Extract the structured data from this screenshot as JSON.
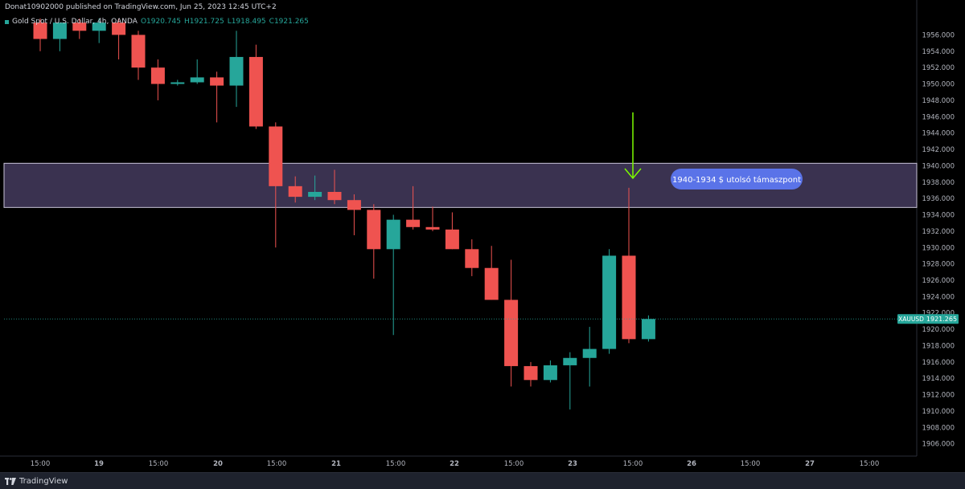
{
  "header": {
    "published_by": "Donat10902000 published on TradingView.com, Jun 25, 2023 12:45 UTC+2"
  },
  "legend": {
    "symbol": "Gold Spot / U.S. Dollar, 4h, OANDA",
    "open": "O1920.745",
    "high": "H1921.725",
    "low": "L1918.495",
    "close": "C1921.265"
  },
  "price_tag": {
    "symbol": "XAUUSD",
    "price": "1921.265"
  },
  "annotation": {
    "label": "1940-1934 $ utolsó támaszpont"
  },
  "footer": {
    "brand": "TradingView"
  },
  "colors": {
    "up": "#26a69a",
    "down": "#ef5350",
    "zone_fill": "#3a3250",
    "zone_border": "#c9c3d9",
    "arrow": "#7cfc00",
    "callout": "#5a73e8",
    "axis_text": "#b2b5be"
  },
  "chart_data": {
    "type": "candlestick",
    "price_axis_ticks": [
      "1956.000",
      "1954.000",
      "1952.000",
      "1950.000",
      "1948.000",
      "1946.000",
      "1944.000",
      "1942.000",
      "1940.000",
      "1938.000",
      "1936.000",
      "1934.000",
      "1932.000",
      "1930.000",
      "1928.000",
      "1926.000",
      "1924.000",
      "1922.000",
      "1920.000",
      "1918.000",
      "1916.000",
      "1914.000",
      "1912.000",
      "1910.000",
      "1908.000",
      "1906.000"
    ],
    "price_range": [
      1904.5,
      1958.3
    ],
    "time_axis_ticks": [
      "15:00",
      "19",
      "15:00",
      "20",
      "15:00",
      "21",
      "15:00",
      "22",
      "15:00",
      "23",
      "15:00",
      "26",
      "15:00",
      "27",
      "15:00"
    ],
    "support_zone": [
      1934.9,
      1940.3
    ],
    "current_price": 1921.265,
    "candles": [
      {
        "o": 1957.5,
        "h": 1958.0,
        "l": 1954.0,
        "c": 1955.5
      },
      {
        "o": 1955.5,
        "h": 1957.5,
        "l": 1954.0,
        "c": 1957.5
      },
      {
        "o": 1957.5,
        "h": 1958.0,
        "l": 1955.5,
        "c": 1956.5
      },
      {
        "o": 1956.5,
        "h": 1958.0,
        "l": 1955.0,
        "c": 1957.5
      },
      {
        "o": 1957.5,
        "h": 1958.0,
        "l": 1953.0,
        "c": 1956.0
      },
      {
        "o": 1956.0,
        "h": 1956.5,
        "l": 1950.5,
        "c": 1952.0
      },
      {
        "o": 1952.0,
        "h": 1953.0,
        "l": 1948.0,
        "c": 1950.0
      },
      {
        "o": 1950.0,
        "h": 1950.5,
        "l": 1949.8,
        "c": 1950.2
      },
      {
        "o": 1950.2,
        "h": 1953.0,
        "l": 1950.0,
        "c": 1950.8
      },
      {
        "o": 1950.8,
        "h": 1951.5,
        "l": 1945.3,
        "c": 1949.8
      },
      {
        "o": 1949.8,
        "h": 1956.5,
        "l": 1947.2,
        "c": 1953.3
      },
      {
        "o": 1953.3,
        "h": 1954.8,
        "l": 1944.5,
        "c": 1944.8
      },
      {
        "o": 1944.8,
        "h": 1945.3,
        "l": 1930.0,
        "c": 1937.5
      },
      {
        "o": 1937.5,
        "h": 1938.7,
        "l": 1935.5,
        "c": 1936.2
      },
      {
        "o": 1936.2,
        "h": 1938.8,
        "l": 1935.8,
        "c": 1936.8
      },
      {
        "o": 1936.8,
        "h": 1939.5,
        "l": 1935.3,
        "c": 1935.8
      },
      {
        "o": 1935.8,
        "h": 1936.5,
        "l": 1931.5,
        "c": 1934.6
      },
      {
        "o": 1934.6,
        "h": 1935.3,
        "l": 1926.2,
        "c": 1929.8
      },
      {
        "o": 1929.8,
        "h": 1934.0,
        "l": 1919.3,
        "c": 1933.4
      },
      {
        "o": 1933.4,
        "h": 1937.5,
        "l": 1932.2,
        "c": 1932.5
      },
      {
        "o": 1932.5,
        "h": 1935.0,
        "l": 1932.0,
        "c": 1932.2
      },
      {
        "o": 1932.2,
        "h": 1934.3,
        "l": 1929.8,
        "c": 1929.8
      },
      {
        "o": 1929.8,
        "h": 1931.0,
        "l": 1926.5,
        "c": 1927.5
      },
      {
        "o": 1927.5,
        "h": 1930.2,
        "l": 1923.6,
        "c": 1923.6
      },
      {
        "o": 1923.6,
        "h": 1928.5,
        "l": 1913.0,
        "c": 1915.5
      },
      {
        "o": 1915.5,
        "h": 1916.0,
        "l": 1913.0,
        "c": 1913.8
      },
      {
        "o": 1913.8,
        "h": 1916.2,
        "l": 1913.5,
        "c": 1915.6
      },
      {
        "o": 1915.6,
        "h": 1917.2,
        "l": 1910.2,
        "c": 1916.5
      },
      {
        "o": 1916.5,
        "h": 1920.3,
        "l": 1913.0,
        "c": 1917.6
      },
      {
        "o": 1917.6,
        "h": 1929.8,
        "l": 1917.0,
        "c": 1929.0
      },
      {
        "o": 1929.0,
        "h": 1937.3,
        "l": 1918.3,
        "c": 1918.8
      },
      {
        "o": 1918.8,
        "h": 1921.7,
        "l": 1918.5,
        "c": 1921.265
      }
    ]
  }
}
